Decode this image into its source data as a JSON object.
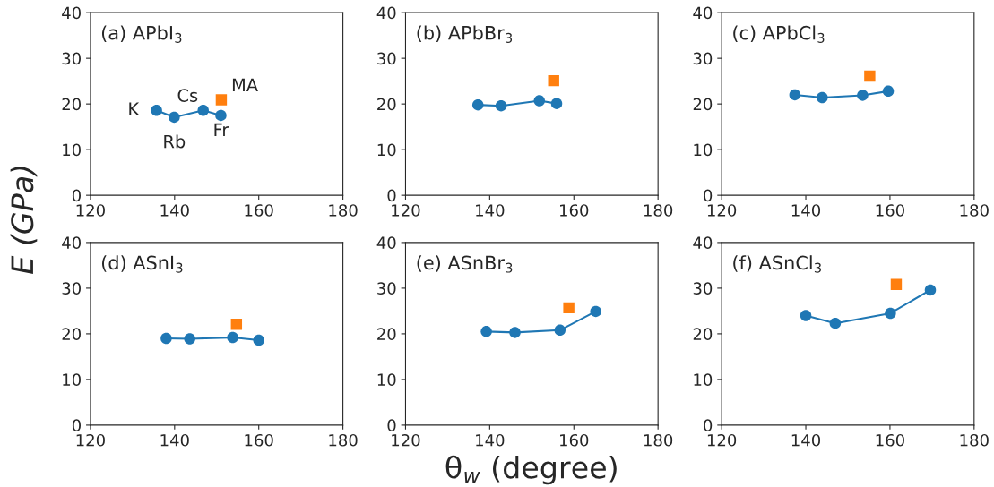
{
  "chart_data": [
    {
      "type": "line",
      "title": "(a) APbI$_{3}$",
      "ylabel": "E (GPa)",
      "xlim": [
        120,
        180
      ],
      "xticks": [
        120,
        140,
        160,
        180
      ],
      "ylim": [
        0,
        40
      ],
      "yticks": [
        0,
        10,
        20,
        30,
        40
      ],
      "grid": false,
      "series": [
        {
          "marker": "circle",
          "color": "#1f77b4",
          "x": [
            135.7,
            139.9,
            146.8,
            151.0
          ],
          "values": [
            18.6,
            17.1,
            18.6,
            17.5
          ]
        },
        {
          "type": "scatter",
          "marker": "square",
          "color": "#ff7f0e",
          "x": [
            151.1
          ],
          "values": [
            20.9
          ]
        }
      ],
      "annotations": [
        {
          "text": "K",
          "x": 135.7,
          "y": 18.6
        },
        {
          "text": "Rb",
          "x": 139.9,
          "y": 17.1
        },
        {
          "text": "Cs",
          "x": 146.8,
          "y": 18.6
        },
        {
          "text": "Fr",
          "x": 151.0,
          "y": 17.5
        },
        {
          "text": "MA",
          "x": 151.1,
          "y": 20.9
        }
      ]
    },
    {
      "type": "line",
      "title": "(b) APbBr$_{3}$",
      "xlim": [
        120,
        180
      ],
      "xticks": [
        120,
        140,
        160,
        180
      ],
      "ylim": [
        0,
        40
      ],
      "yticks": [
        0,
        10,
        20,
        30,
        40
      ],
      "grid": false,
      "series": [
        {
          "marker": "circle",
          "color": "#1f77b4",
          "x": [
            137.2,
            142.7,
            151.8,
            155.9
          ],
          "values": [
            19.8,
            19.6,
            20.7,
            20.1
          ]
        },
        {
          "type": "scatter",
          "marker": "square",
          "color": "#ff7f0e",
          "x": [
            155.2
          ],
          "values": [
            25.1
          ]
        }
      ]
    },
    {
      "type": "line",
      "title": "(c) APbCl$_{3}$",
      "xlim": [
        120,
        180
      ],
      "xticks": [
        120,
        140,
        160,
        180
      ],
      "ylim": [
        0,
        40
      ],
      "yticks": [
        0,
        10,
        20,
        30,
        40
      ],
      "grid": false,
      "series": [
        {
          "marker": "circle",
          "color": "#1f77b4",
          "x": [
            137.4,
            143.9,
            153.5,
            159.6
          ],
          "values": [
            22.0,
            21.4,
            21.9,
            22.8
          ]
        },
        {
          "type": "scatter",
          "marker": "square",
          "color": "#ff7f0e",
          "x": [
            155.2
          ],
          "values": [
            26.1
          ]
        }
      ]
    },
    {
      "type": "line",
      "title": "(d) ASnI$_{3}$",
      "xlim": [
        120,
        180
      ],
      "xticks": [
        120,
        140,
        160,
        180
      ],
      "ylim": [
        0,
        40
      ],
      "yticks": [
        0,
        10,
        20,
        30,
        40
      ],
      "grid": false,
      "series": [
        {
          "marker": "circle",
          "color": "#1f77b4",
          "x": [
            138.0,
            143.6,
            153.8,
            160.0
          ],
          "values": [
            19.0,
            18.9,
            19.2,
            18.6
          ]
        },
        {
          "type": "scatter",
          "marker": "square",
          "color": "#ff7f0e",
          "x": [
            154.7
          ],
          "values": [
            22.1
          ]
        }
      ]
    },
    {
      "type": "line",
      "title": "(e) ASnBr$_{3}$",
      "xlabel": "θ$_{w}$ (degree)",
      "xlim": [
        120,
        180
      ],
      "xticks": [
        120,
        140,
        160,
        180
      ],
      "ylim": [
        0,
        40
      ],
      "yticks": [
        0,
        10,
        20,
        30,
        40
      ],
      "grid": false,
      "series": [
        {
          "marker": "circle",
          "color": "#1f77b4",
          "x": [
            139.2,
            146.0,
            156.7,
            165.2
          ],
          "values": [
            20.5,
            20.3,
            20.8,
            24.9
          ]
        },
        {
          "type": "scatter",
          "marker": "square",
          "color": "#ff7f0e",
          "x": [
            158.8
          ],
          "values": [
            25.7
          ]
        }
      ]
    },
    {
      "type": "line",
      "title": "(f) ASnCl$_{3}$",
      "xlim": [
        120,
        180
      ],
      "xticks": [
        120,
        140,
        160,
        180
      ],
      "ylim": [
        0,
        40
      ],
      "yticks": [
        0,
        10,
        20,
        30,
        40
      ],
      "grid": false,
      "series": [
        {
          "marker": "circle",
          "color": "#1f77b4",
          "x": [
            140.0,
            147.0,
            160.1,
            169.6
          ],
          "values": [
            24.0,
            22.3,
            24.5,
            29.6
          ]
        },
        {
          "type": "scatter",
          "marker": "square",
          "color": "#ff7f0e",
          "x": [
            161.5
          ],
          "values": [
            30.8
          ]
        }
      ]
    }
  ]
}
